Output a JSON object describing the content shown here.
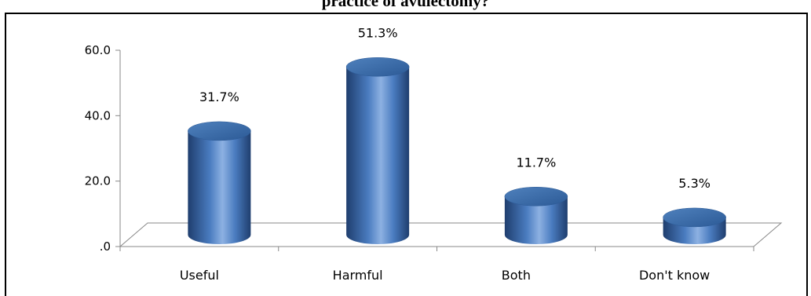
{
  "figure": {
    "title": "practice of avulectomy?"
  },
  "chart_data": {
    "type": "bar",
    "categories": [
      "Useful",
      "Harmful",
      "Both",
      "Don't know"
    ],
    "values": [
      31.7,
      51.3,
      11.7,
      5.3
    ],
    "data_labels": [
      "31.7%",
      "51.3%",
      "11.7%",
      "5.3%"
    ],
    "y_ticks": [
      ".0",
      "20.0",
      "40.0",
      "60.0"
    ],
    "ylim": [
      0,
      60
    ],
    "grid": false,
    "bar_color": "#4F81BD",
    "style": "3d-cylinder"
  }
}
